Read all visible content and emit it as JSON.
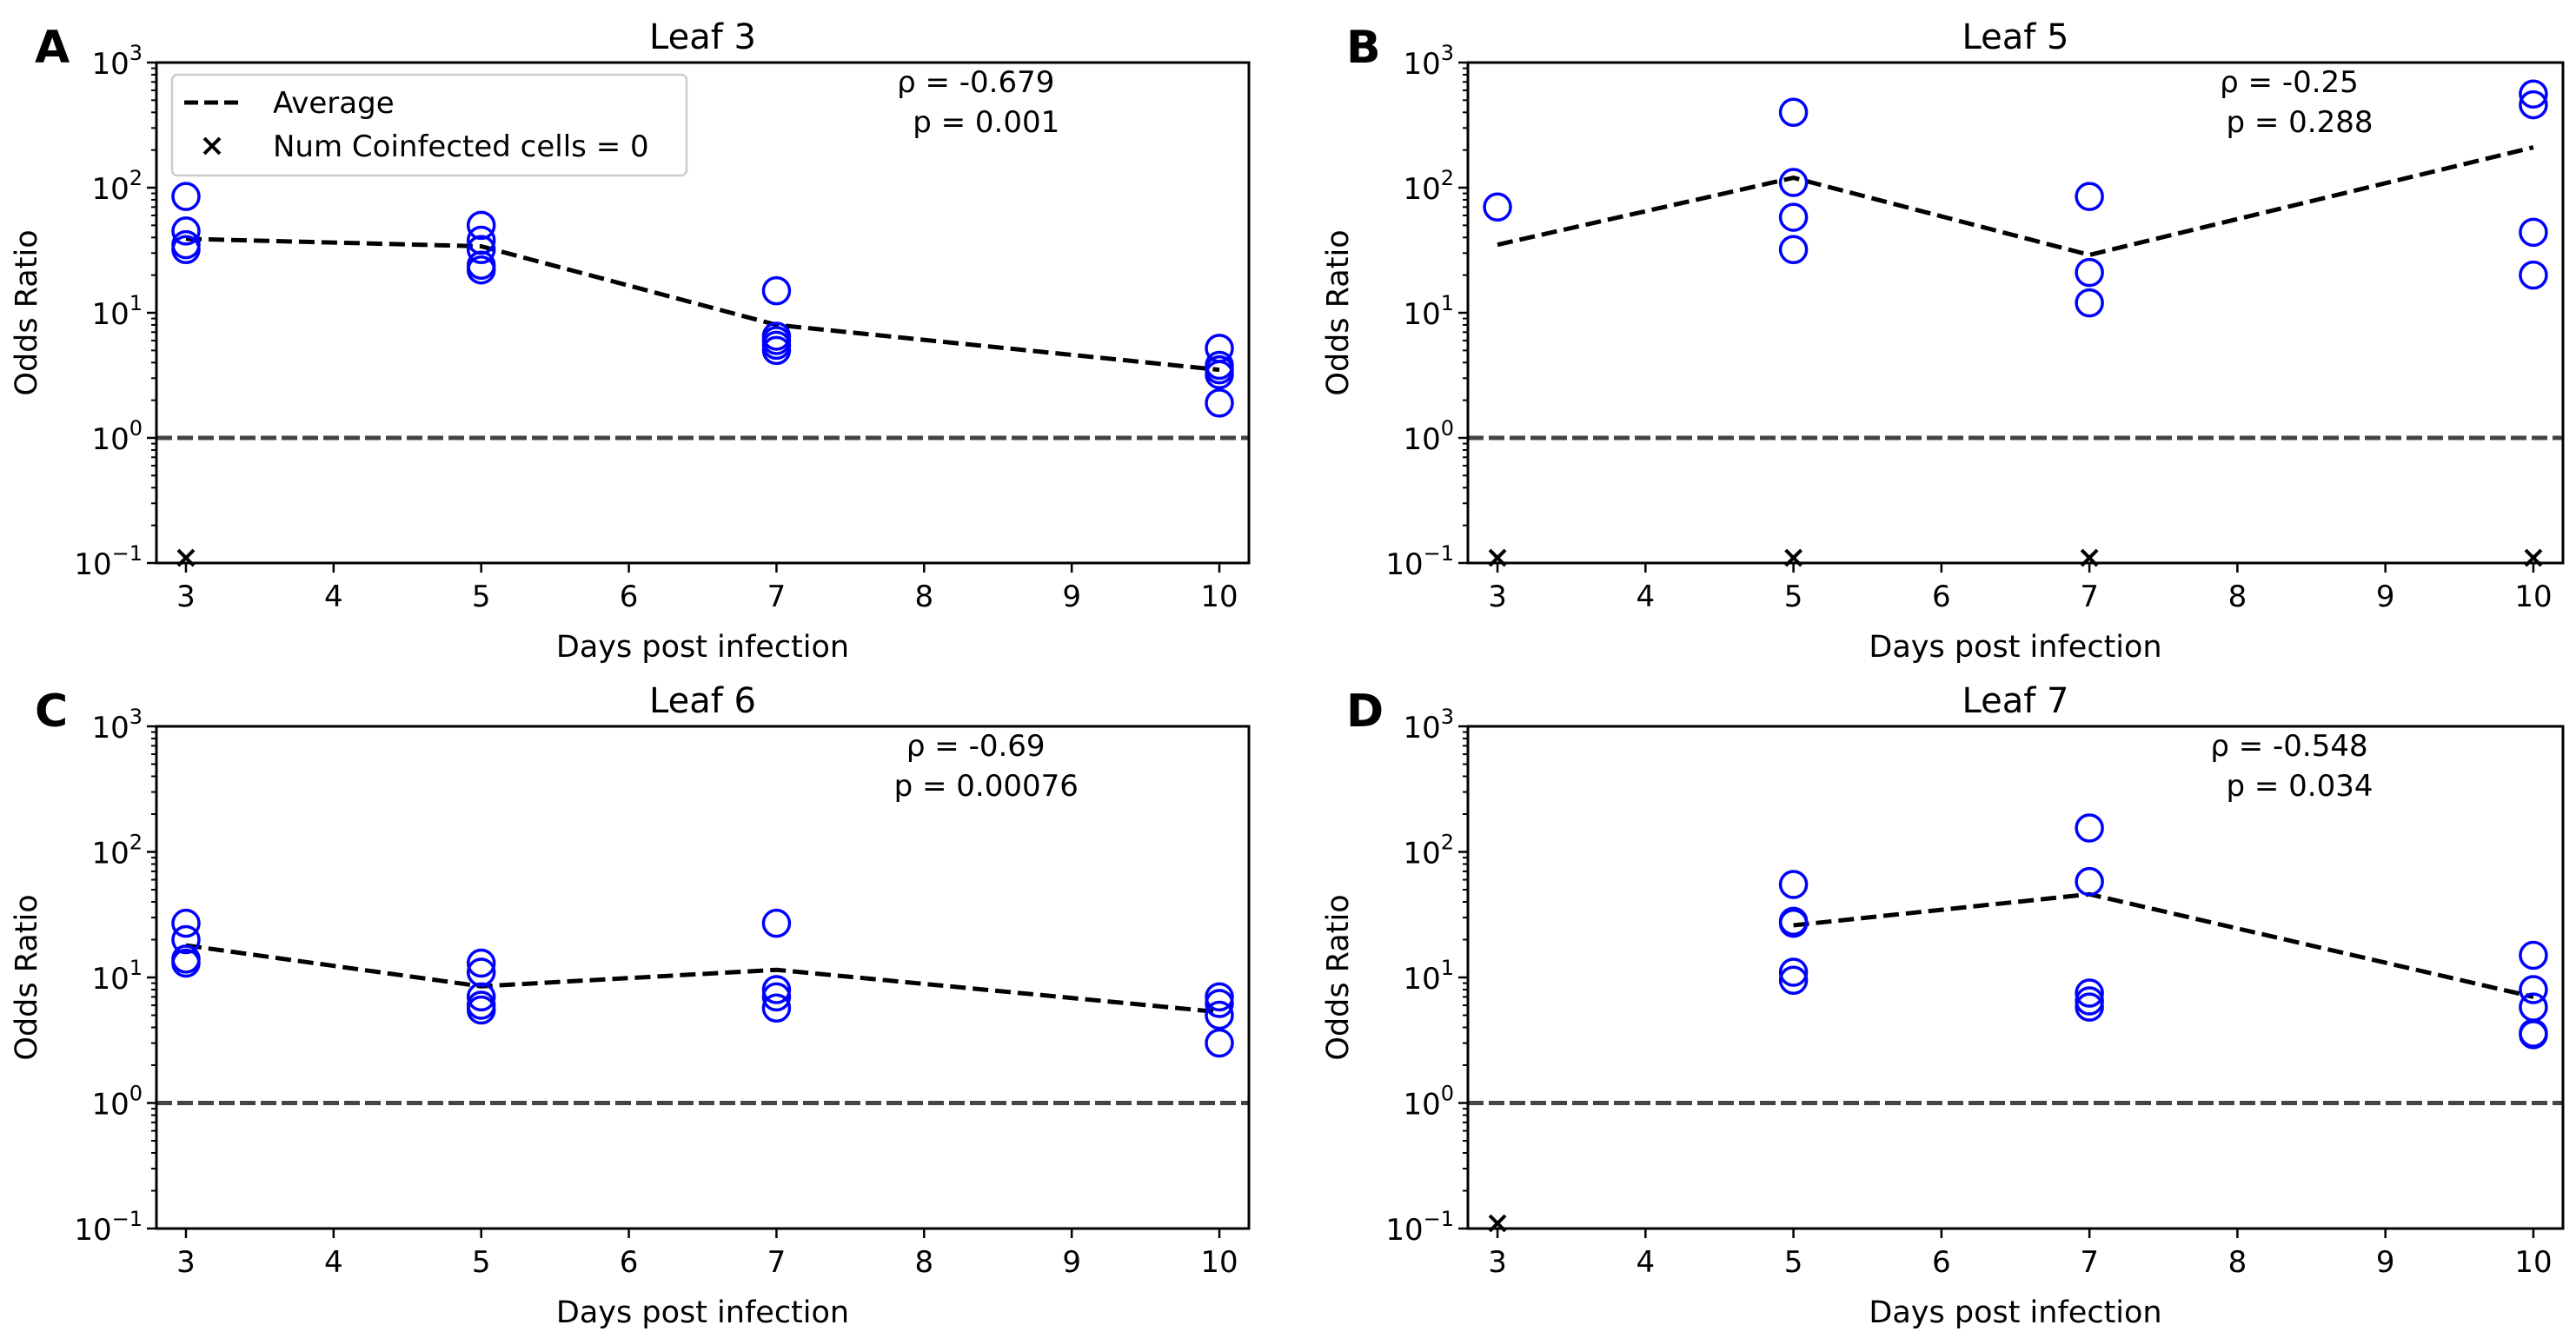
{
  "chart_data": [
    {
      "type": "scatter",
      "panel_label": "A",
      "title": "Leaf 3",
      "xlabel": "Days post infection",
      "ylabel": "Odds Ratio",
      "yscale": "log",
      "ylim": [
        0.1,
        1000
      ],
      "xlim": [
        2.8,
        10.2
      ],
      "xticks": [
        "3",
        "4",
        "5",
        "6",
        "7",
        "8",
        "9",
        "10"
      ],
      "yticks": [
        {
          "base": "10",
          "exp": "−1"
        },
        {
          "base": "10",
          "exp": "0"
        },
        {
          "base": "10",
          "exp": "1"
        },
        {
          "base": "10",
          "exp": "2"
        },
        {
          "base": "10",
          "exp": "3"
        }
      ],
      "rho_text": "ρ = -0.679",
      "p_text": "p = 0.001",
      "points": [
        {
          "x": 3,
          "y": [
            85,
            45,
            35,
            32
          ]
        },
        {
          "x": 5,
          "y": [
            50,
            38,
            32,
            24,
            22
          ]
        },
        {
          "x": 7,
          "y": [
            15,
            6.5,
            6,
            5.5,
            5
          ]
        },
        {
          "x": 10,
          "y": [
            5.2,
            3.8,
            3.5,
            3.2,
            1.9
          ]
        }
      ],
      "average": {
        "x": [
          3,
          5,
          7,
          10
        ],
        "y": [
          39,
          34,
          8,
          3.5
        ]
      },
      "zero_coinfected_x": [
        3
      ],
      "reference_line_y": 1
    },
    {
      "type": "scatter",
      "panel_label": "B",
      "title": "Leaf 5",
      "xlabel": "Days post infection",
      "ylabel": "Odds Ratio",
      "yscale": "log",
      "ylim": [
        0.1,
        1000
      ],
      "xlim": [
        2.8,
        10.2
      ],
      "xticks": [
        "3",
        "4",
        "5",
        "6",
        "7",
        "8",
        "9",
        "10"
      ],
      "yticks": [
        {
          "base": "10",
          "exp": "−1"
        },
        {
          "base": "10",
          "exp": "0"
        },
        {
          "base": "10",
          "exp": "1"
        },
        {
          "base": "10",
          "exp": "2"
        },
        {
          "base": "10",
          "exp": "3"
        }
      ],
      "rho_text": "ρ = -0.25",
      "p_text": "p = 0.288",
      "points": [
        {
          "x": 3,
          "y": [
            70
          ]
        },
        {
          "x": 5,
          "y": [
            400,
            110,
            58,
            32
          ]
        },
        {
          "x": 7,
          "y": [
            85,
            21,
            12
          ]
        },
        {
          "x": 10,
          "y": [
            560,
            460,
            44,
            20
          ]
        }
      ],
      "average": {
        "x": [
          3,
          5,
          7,
          10
        ],
        "y": [
          35,
          120,
          29,
          210
        ]
      },
      "zero_coinfected_x": [
        3,
        5,
        7,
        10
      ],
      "reference_line_y": 1
    },
    {
      "type": "scatter",
      "panel_label": "C",
      "title": "Leaf 6",
      "xlabel": "Days post infection",
      "ylabel": "Odds Ratio",
      "yscale": "log",
      "ylim": [
        0.1,
        1000
      ],
      "xlim": [
        2.8,
        10.2
      ],
      "xticks": [
        "3",
        "4",
        "5",
        "6",
        "7",
        "8",
        "9",
        "10"
      ],
      "yticks": [
        {
          "base": "10",
          "exp": "−1"
        },
        {
          "base": "10",
          "exp": "0"
        },
        {
          "base": "10",
          "exp": "1"
        },
        {
          "base": "10",
          "exp": "2"
        },
        {
          "base": "10",
          "exp": "3"
        }
      ],
      "rho_text": "ρ = -0.69",
      "p_text": "p = 0.00076",
      "points": [
        {
          "x": 3,
          "y": [
            27,
            20,
            14,
            13
          ]
        },
        {
          "x": 5,
          "y": [
            13,
            11,
            7,
            6,
            5.5
          ]
        },
        {
          "x": 7,
          "y": [
            27,
            8,
            7,
            5.7
          ]
        },
        {
          "x": 10,
          "y": [
            7,
            6.2,
            5,
            3
          ]
        }
      ],
      "average": {
        "x": [
          3,
          5,
          7,
          10
        ],
        "y": [
          18,
          8.5,
          11.5,
          5.3
        ]
      },
      "zero_coinfected_x": [],
      "reference_line_y": 1
    },
    {
      "type": "scatter",
      "panel_label": "D",
      "title": "Leaf 7",
      "xlabel": "Days post infection",
      "ylabel": "Odds Ratio",
      "yscale": "log",
      "ylim": [
        0.1,
        1000
      ],
      "xlim": [
        2.8,
        10.2
      ],
      "xticks": [
        "3",
        "4",
        "5",
        "6",
        "7",
        "8",
        "9",
        "10"
      ],
      "yticks": [
        {
          "base": "10",
          "exp": "−1"
        },
        {
          "base": "10",
          "exp": "0"
        },
        {
          "base": "10",
          "exp": "1"
        },
        {
          "base": "10",
          "exp": "2"
        },
        {
          "base": "10",
          "exp": "3"
        }
      ],
      "rho_text": "ρ = -0.548",
      "p_text": "p = 0.034",
      "points": [
        {
          "x": 5,
          "y": [
            55,
            28,
            27,
            11,
            9.5
          ]
        },
        {
          "x": 7,
          "y": [
            155,
            58,
            7.5,
            6.5,
            5.8
          ]
        },
        {
          "x": 10,
          "y": [
            15,
            8,
            5.8,
            3.6,
            3.5
          ]
        }
      ],
      "average": {
        "x": [
          5,
          7,
          10
        ],
        "y": [
          26,
          46,
          7
        ]
      },
      "zero_coinfected_x": [
        3
      ],
      "reference_line_y": 1
    }
  ],
  "legend": {
    "placement": "top-left",
    "entries": [
      "Average",
      "Num Coinfected cells = 0"
    ]
  },
  "colors": {
    "points": "#0000ff",
    "average": "#000000",
    "reference": "#444444"
  }
}
